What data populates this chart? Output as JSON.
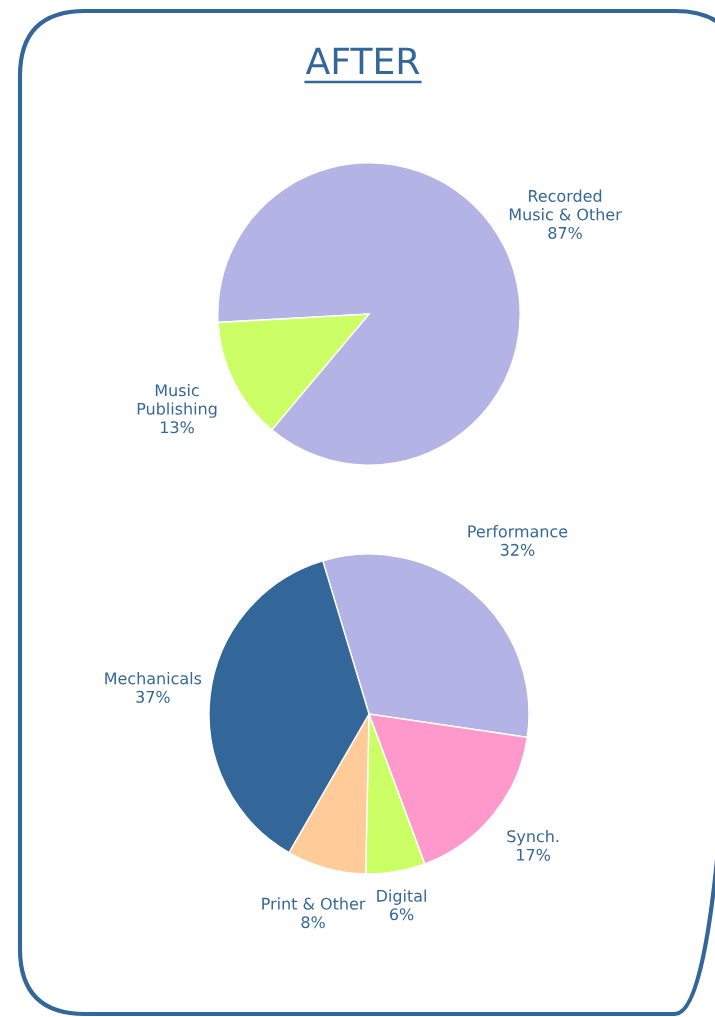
{
  "chart_data": [
    {
      "type": "pie",
      "title": "AFTER",
      "categories": [
        "Recorded\nMusic & Other",
        "Music\nPublishing"
      ],
      "values": [
        87,
        13
      ],
      "colors": [
        "#b3b3e6",
        "#ccff66"
      ],
      "value_labels": [
        "87%",
        "13%"
      ]
    },
    {
      "type": "pie",
      "categories": [
        "Performance",
        "Synch.",
        "Digital",
        "Print & Other",
        "Mechanicals"
      ],
      "values": [
        32,
        17,
        6,
        8,
        37
      ],
      "colors": [
        "#b3b3e6",
        "#ff99cc",
        "#ccff66",
        "#ffcc99",
        "#336699"
      ],
      "value_labels": [
        "32%",
        "17%",
        "6%",
        "8%",
        "37%"
      ]
    }
  ]
}
